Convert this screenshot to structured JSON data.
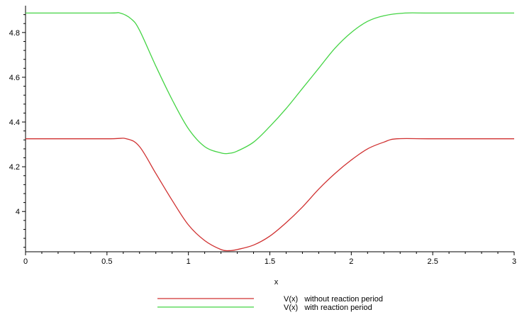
{
  "chart_data": {
    "type": "line",
    "xlabel": "x",
    "ylabel": "",
    "xlim": [
      0,
      3
    ],
    "ylim": [
      3.82,
      4.92
    ],
    "x_ticks": [
      0,
      0.5,
      1,
      1.5,
      2,
      2.5,
      3
    ],
    "x_tick_labels": [
      "0",
      "0.5",
      "1",
      "1.5",
      "2",
      "2.5",
      "3"
    ],
    "y_ticks": [
      4,
      4.2,
      4.4,
      4.6,
      4.8
    ],
    "y_tick_labels": [
      "4",
      "4.2",
      "4.4",
      "4.6",
      "4.8"
    ],
    "grid": false,
    "legend_position": "bottom-center",
    "series": [
      {
        "name": "V(x)   without reaction period",
        "color": "#d03030",
        "x": [
          0,
          0.5,
          0.62,
          0.7,
          0.8,
          0.9,
          1.0,
          1.1,
          1.2,
          1.25,
          1.3,
          1.4,
          1.5,
          1.6,
          1.7,
          1.8,
          1.9,
          2.0,
          2.1,
          2.2,
          2.28,
          2.5,
          3.0
        ],
        "y": [
          4.325,
          4.325,
          4.325,
          4.29,
          4.17,
          4.05,
          3.94,
          3.87,
          3.83,
          3.825,
          3.83,
          3.85,
          3.89,
          3.95,
          4.02,
          4.1,
          4.17,
          4.23,
          4.28,
          4.31,
          4.325,
          4.325,
          4.325
        ]
      },
      {
        "name": "V(x)   with reaction period",
        "color": "#44d444",
        "x": [
          0,
          0.5,
          0.58,
          0.65,
          0.7,
          0.8,
          0.9,
          1.0,
          1.1,
          1.2,
          1.25,
          1.3,
          1.4,
          1.5,
          1.6,
          1.7,
          1.8,
          1.9,
          2.0,
          2.1,
          2.2,
          2.33,
          2.5,
          3.0
        ],
        "y": [
          4.887,
          4.887,
          4.887,
          4.86,
          4.81,
          4.65,
          4.5,
          4.37,
          4.29,
          4.262,
          4.26,
          4.27,
          4.31,
          4.38,
          4.46,
          4.55,
          4.64,
          4.73,
          4.8,
          4.85,
          4.875,
          4.887,
          4.887,
          4.887
        ]
      }
    ]
  }
}
